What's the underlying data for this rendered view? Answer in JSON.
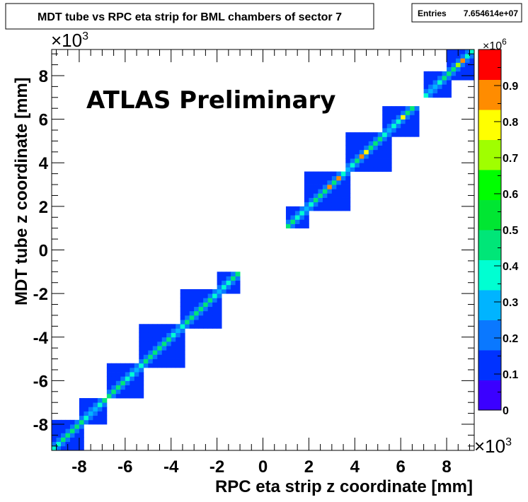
{
  "chart_data": {
    "type": "heatmap",
    "title": "MDT tube vs RPC eta strip for BML chambers of sector 7",
    "stats": {
      "entries_label": "Entries",
      "entries_value": "7.654614e+07"
    },
    "xlabel": "RPC eta strip z coordinate [mm]",
    "ylabel": "MDT tube z coordinate [mm]",
    "x_exponent": "×10",
    "x_exponent_power": "3",
    "y_exponent": "×10",
    "y_exponent_power": "3",
    "z_exponent": "×10",
    "z_exponent_power": "6",
    "xlim": [
      -9.2,
      9.2
    ],
    "ylim": [
      -9.2,
      9.2
    ],
    "zlim": [
      0,
      1.0
    ],
    "x_ticks": [
      -8,
      -6,
      -4,
      -2,
      0,
      2,
      4,
      6,
      8
    ],
    "x_tick_labels": [
      "-8",
      "-6",
      "-4",
      "-2",
      "0",
      "2",
      "4",
      "6",
      "8"
    ],
    "y_ticks": [
      -8,
      -6,
      -4,
      -2,
      0,
      2,
      4,
      6,
      8
    ],
    "y_tick_labels": [
      "-8",
      "-6",
      "-4",
      "-2",
      "0",
      "2",
      "4",
      "6",
      "8"
    ],
    "z_ticks": [
      0,
      0.1,
      0.2,
      0.3,
      0.4,
      0.5,
      0.6,
      0.7,
      0.8,
      0.9
    ],
    "z_tick_labels": [
      "0",
      "0.1",
      "0.2",
      "0.3",
      "0.4",
      "0.5",
      "0.6",
      "0.7",
      "0.8",
      "0.9"
    ],
    "annotation": "ATLAS Preliminary",
    "bin_size": 0.2,
    "palette": [
      "#3b00ff",
      "#0032ff",
      "#0a78ff",
      "#00b4ff",
      "#00ffd2",
      "#00e678",
      "#00e632",
      "#00ff00",
      "#a0ff00",
      "#ffff00",
      "#ff8c00",
      "#ff0000"
    ],
    "chambers": [
      {
        "x": [
          -9.2,
          -7.8
        ],
        "y": [
          -9.2,
          -7.8
        ]
      },
      {
        "x": [
          -8.0,
          -6.8
        ],
        "y": [
          -8.0,
          -6.8
        ]
      },
      {
        "x": [
          -6.8,
          -5.2
        ],
        "y": [
          -6.8,
          -5.2
        ]
      },
      {
        "x": [
          -5.4,
          -3.4
        ],
        "y": [
          -5.4,
          -3.4
        ]
      },
      {
        "x": [
          -3.6,
          -1.8
        ],
        "y": [
          -3.6,
          -1.8
        ]
      },
      {
        "x": [
          -2.0,
          -1.0
        ],
        "y": [
          -2.0,
          -1.0
        ]
      },
      {
        "x": [
          1.0,
          2.0
        ],
        "y": [
          1.0,
          2.0
        ]
      },
      {
        "x": [
          1.8,
          3.8
        ],
        "y": [
          1.8,
          3.6
        ]
      },
      {
        "x": [
          3.6,
          5.6
        ],
        "y": [
          3.6,
          5.4
        ]
      },
      {
        "x": [
          5.2,
          6.8
        ],
        "y": [
          5.2,
          6.6
        ]
      },
      {
        "x": [
          7.0,
          8.2
        ],
        "y": [
          7.0,
          8.2
        ]
      },
      {
        "x": [
          8.0,
          9.2
        ],
        "y": [
          7.8,
          9.2
        ]
      }
    ],
    "diagonal_peaks": [
      {
        "x": 2.8,
        "y": 2.8,
        "value": 0.95
      },
      {
        "x": 3.2,
        "y": 3.2,
        "value": 0.93
      },
      {
        "x": 4.4,
        "y": 4.4,
        "value": 0.82
      },
      {
        "x": 4.2,
        "y": 4.2,
        "value": 0.95
      },
      {
        "x": 6.0,
        "y": 6.0,
        "value": 0.85
      },
      {
        "x": 8.6,
        "y": 8.6,
        "value": 0.95
      },
      {
        "x": 8.4,
        "y": 8.4,
        "value": 0.75
      }
    ]
  },
  "colors": {
    "frame": "#000000",
    "background": "#ffffff"
  }
}
